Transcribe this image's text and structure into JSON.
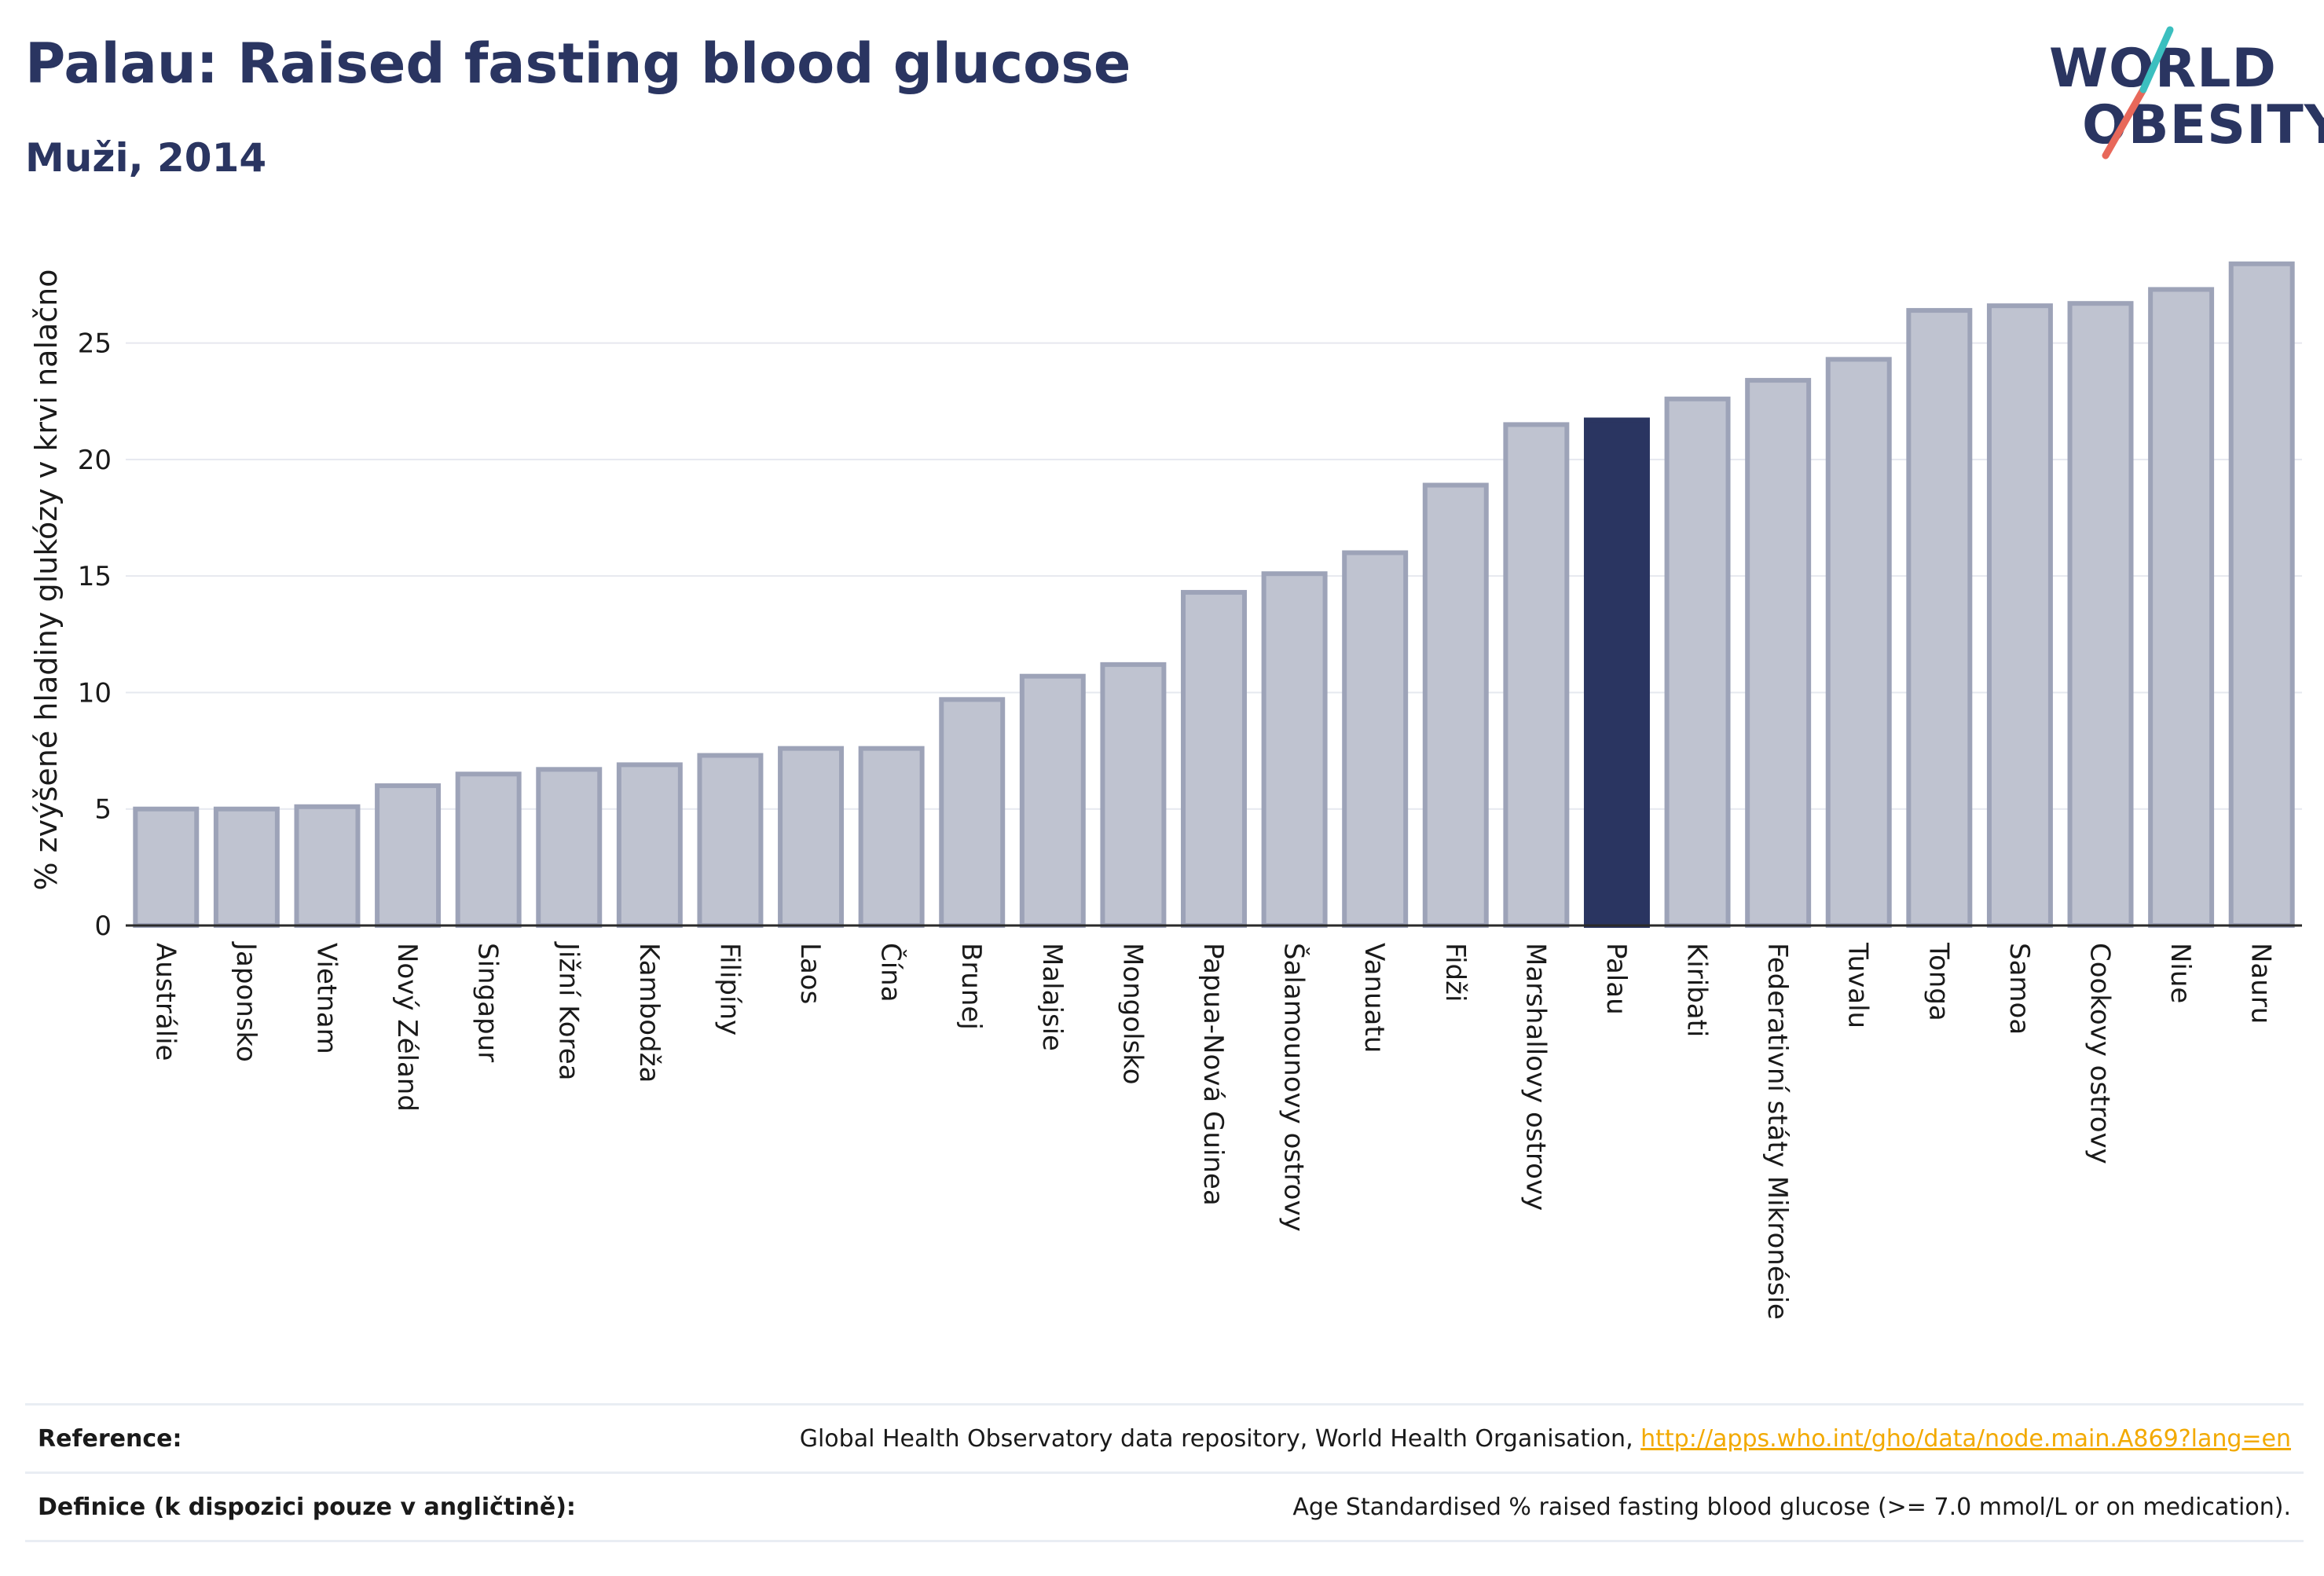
{
  "header": {
    "title": "Palau: Raised fasting blood glucose",
    "subtitle": "Muži, 2014"
  },
  "logo": {
    "line1": "WORLD",
    "line2": "OBESITY",
    "accent_colors": [
      "#3bbfbf",
      "#e8685a"
    ]
  },
  "colors": {
    "highlight": "#2a3561",
    "bar_fill": "#bfc3d0",
    "bar_stroke": "#9da3b8",
    "grid": "#e6e8ef",
    "axis": "#2a2a2a"
  },
  "chart_data": {
    "type": "bar",
    "title": "Palau: Raised fasting blood glucose",
    "subtitle": "Muži, 2014",
    "xlabel": "",
    "ylabel": "% zvýšené hladiny glukózy v krvi nalačno",
    "ylim": [
      0,
      29
    ],
    "yticks": [
      0,
      5,
      10,
      15,
      20,
      25
    ],
    "grid": true,
    "highlight": "Palau",
    "categories": [
      "Austrálie",
      "Japonsko",
      "Vietnam",
      "Nový Zéland",
      "Singapur",
      "Jižní Korea",
      "Kambodža",
      "Filipíny",
      "Laos",
      "Čína",
      "Brunej",
      "Malajsie",
      "Mongolsko",
      "Papua-Nová Guinea",
      "Šalamounovy ostrovy",
      "Vanuatu",
      "Fidži",
      "Marshallovy ostrovy",
      "Palau",
      "Kiribati",
      "Federativní státy Mikronésie",
      "Tuvalu",
      "Tonga",
      "Samoa",
      "Cookovy ostrovy",
      "Niue",
      "Nauru"
    ],
    "values": [
      5.0,
      5.0,
      5.1,
      6.0,
      6.5,
      6.7,
      6.9,
      7.3,
      7.6,
      7.6,
      9.7,
      10.7,
      11.2,
      14.3,
      15.1,
      16.0,
      18.9,
      21.5,
      21.7,
      22.6,
      23.4,
      24.3,
      26.4,
      26.6,
      26.7,
      27.3,
      28.4
    ]
  },
  "footer": {
    "reference_label": "Reference:",
    "reference_text": "Global Health Observatory data repository, World Health Organisation, ",
    "reference_link": "http://apps.who.int/gho/data/node.main.A869?lang=en",
    "definition_label": "Definice (k dispozici pouze v angličtině):",
    "definition_text": "Age Standardised % raised fasting blood glucose (>= 7.0 mmol/L or on medication)."
  }
}
